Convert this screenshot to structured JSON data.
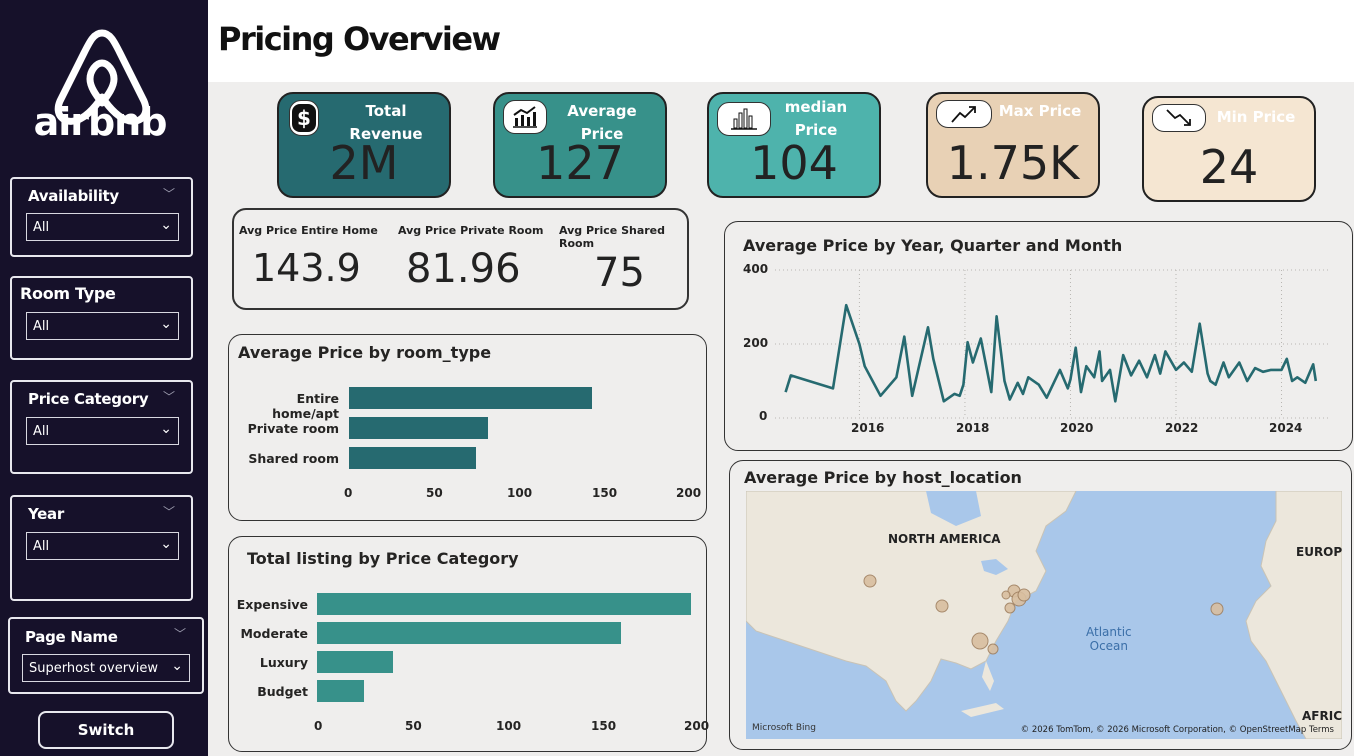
{
  "sidebar": {
    "logo_text": "airbnb",
    "slicers": [
      {
        "title": "Availability",
        "value": "All"
      },
      {
        "title": "Room Type",
        "value": "All"
      },
      {
        "title": "Price Category",
        "value": "All"
      },
      {
        "title": "Year",
        "value": "All"
      },
      {
        "title": "Page Name",
        "value": "Superhost overview"
      }
    ],
    "switch_label": "Switch"
  },
  "header": {
    "title": "Pricing Overview"
  },
  "kpis": [
    {
      "label_line1": "Total",
      "label_line2": "Revenue",
      "value": "2M",
      "icon": "dollar-icon",
      "color": "#266a70"
    },
    {
      "label_line1": "Average",
      "label_line2": "Price",
      "value": "127",
      "icon": "trend-chart-icon",
      "color": "#37918a"
    },
    {
      "label_line1": "median",
      "label_line2": "Price",
      "value": "104",
      "icon": "bar-chart-icon",
      "color": "#4eb3ac"
    },
    {
      "label_line1": "Max Price",
      "label_line2": "",
      "value": "1.75K",
      "icon": "trend-up-icon",
      "color": "#e8d1b5"
    },
    {
      "label_line1": "Min Price",
      "label_line2": "",
      "value": "24",
      "icon": "trend-down-icon",
      "color": "#f5e6d2"
    }
  ],
  "room_avgs": {
    "entire_label": "Avg Price Entire Home",
    "entire_value": "143.9",
    "private_label": "Avg Price Private Room",
    "private_value": "81.96",
    "shared_label": "Avg Price Shared Room",
    "shared_value": "75"
  },
  "line_chart": {
    "title": "Average Price by Year, Quarter and Month",
    "y_ticks": [
      "400",
      "200",
      "0"
    ],
    "x_ticks": [
      "2016",
      "2018",
      "2020",
      "2022",
      "2024"
    ]
  },
  "room_chart": {
    "title": "Average Price by room_type",
    "x_ticks": [
      "0",
      "50",
      "100",
      "150",
      "200"
    ]
  },
  "category_chart": {
    "title": "Total listing by Price Category",
    "x_ticks": [
      "0",
      "50",
      "100",
      "150",
      "200"
    ]
  },
  "map": {
    "title": "Average Price by host_location",
    "label_na": "NORTH AMERICA",
    "label_eu": "EUROPE",
    "label_af": "AFRICA",
    "ocean_line1": "Atlantic",
    "ocean_line2": "Ocean",
    "attribution": "© 2026 TomTom, © 2026 Microsoft Corporation, © OpenStreetMap  Terms",
    "bing": "Microsoft Bing"
  },
  "chart_data": [
    {
      "type": "bar",
      "title": "Average Price by room_type",
      "categories": [
        "Entire home/apt",
        "Private room",
        "Shared room"
      ],
      "values": [
        143.9,
        81.96,
        75
      ],
      "xlim": [
        0,
        200
      ],
      "color": "#266a70"
    },
    {
      "type": "bar",
      "title": "Total listing by Price Category",
      "categories": [
        "Expensive",
        "Moderate",
        "Luxury",
        "Budget"
      ],
      "values": [
        198,
        161,
        40,
        25
      ],
      "xlim": [
        0,
        200
      ],
      "color": "#37918a"
    },
    {
      "type": "line",
      "title": "Average Price by Year, Quarter and Month",
      "x": [
        2014.6,
        2014.7,
        2015.5,
        2015.75,
        2016.0,
        2016.1,
        2016.4,
        2016.7,
        2016.85,
        2017.0,
        2017.3,
        2017.4,
        2017.6,
        2017.8,
        2017.9,
        2017.97,
        2018.05,
        2018.15,
        2018.3,
        2018.5,
        2018.6,
        2018.75,
        2018.85,
        2019.0,
        2019.1,
        2019.2,
        2019.4,
        2019.55,
        2019.8,
        2019.95,
        2020.0,
        2020.1,
        2020.2,
        2020.3,
        2020.45,
        2020.55,
        2020.6,
        2020.75,
        2020.85,
        2021.0,
        2021.15,
        2021.3,
        2021.45,
        2021.6,
        2021.7,
        2021.8,
        2022.0,
        2022.15,
        2022.3,
        2022.45,
        2022.6,
        2022.65,
        2022.75,
        2022.9,
        2023.0,
        2023.2,
        2023.35,
        2023.5,
        2023.65,
        2023.8,
        2024.0,
        2024.1,
        2024.2,
        2024.3,
        2024.45,
        2024.6,
        2024.65
      ],
      "y": [
        70,
        115,
        80,
        305,
        200,
        140,
        60,
        110,
        220,
        60,
        245,
        160,
        45,
        65,
        60,
        90,
        205,
        150,
        215,
        70,
        275,
        100,
        50,
        95,
        65,
        110,
        90,
        55,
        130,
        80,
        105,
        190,
        70,
        140,
        110,
        180,
        100,
        130,
        45,
        170,
        115,
        155,
        110,
        170,
        120,
        180,
        130,
        150,
        125,
        255,
        120,
        100,
        90,
        150,
        110,
        150,
        100,
        135,
        125,
        130,
        130,
        160,
        100,
        110,
        95,
        145,
        100
      ],
      "ylim": [
        0,
        400
      ],
      "color": "#266a70"
    }
  ]
}
